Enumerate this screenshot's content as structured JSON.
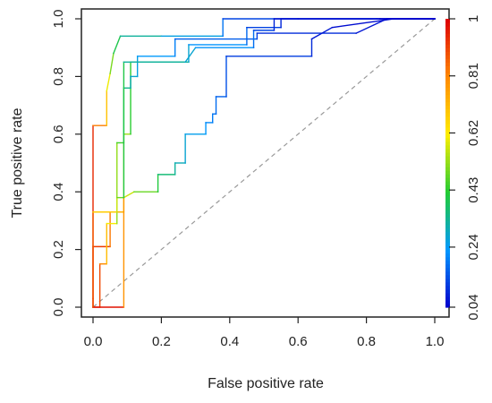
{
  "chart_data": {
    "type": "line",
    "title": "",
    "xlabel": "False positive rate",
    "ylabel": "True positive rate",
    "xlim": [
      0,
      1
    ],
    "ylim": [
      0,
      1
    ],
    "x_ticks": [
      0.0,
      0.2,
      0.4,
      0.6,
      0.8,
      1.0
    ],
    "y_ticks": [
      0.0,
      0.2,
      0.4,
      0.6,
      0.8,
      1.0
    ],
    "x_tick_labels": [
      "0.0",
      "0.2",
      "0.4",
      "0.6",
      "0.8",
      "1.0"
    ],
    "y_tick_labels": [
      "0.0",
      "0.2",
      "0.4",
      "0.6",
      "0.8",
      "1.0"
    ],
    "grid": false,
    "reference_line": {
      "style": "dashed",
      "color": "#999999",
      "points": [
        [
          0,
          0
        ],
        [
          1,
          1
        ]
      ]
    },
    "colorbar": {
      "position": "right",
      "tick_values": [
        0.04,
        0.24,
        0.43,
        0.62,
        0.81,
        1
      ],
      "tick_labels": [
        "0.04",
        "0.24",
        "0.43",
        "0.62",
        "0.81",
        "1"
      ],
      "colors": [
        "#0000cc",
        "#0099ff",
        "#22cc33",
        "#ffee00",
        "#ff8800",
        "#dd0000"
      ]
    },
    "series": [
      {
        "color_scale": "threshold",
        "points": [
          [
            0.0,
            0.0,
            1.0
          ],
          [
            0.0,
            0.03,
            0.99
          ],
          [
            0.0,
            0.63,
            0.9
          ],
          [
            0.04,
            0.63,
            0.75
          ],
          [
            0.04,
            0.75,
            0.65
          ],
          [
            0.05,
            0.81,
            0.55
          ],
          [
            0.06,
            0.88,
            0.45
          ],
          [
            0.08,
            0.94,
            0.35
          ],
          [
            0.2,
            0.94,
            0.3
          ],
          [
            0.38,
            0.94,
            0.22
          ],
          [
            0.38,
            1.0,
            0.15
          ],
          [
            0.6,
            1.0,
            0.1
          ],
          [
            0.83,
            1.0,
            0.06
          ],
          [
            1.0,
            1.0,
            0.04
          ]
        ]
      },
      {
        "color_scale": "threshold",
        "points": [
          [
            0.0,
            0.0,
            1.0
          ],
          [
            0.0,
            0.21,
            0.95
          ],
          [
            0.05,
            0.21,
            0.88
          ],
          [
            0.05,
            0.33,
            0.78
          ],
          [
            0.09,
            0.33,
            0.68
          ],
          [
            0.09,
            0.6,
            0.58
          ],
          [
            0.11,
            0.6,
            0.48
          ],
          [
            0.11,
            0.85,
            0.38
          ],
          [
            0.28,
            0.85,
            0.3
          ],
          [
            0.28,
            0.91,
            0.25
          ],
          [
            0.45,
            0.91,
            0.2
          ],
          [
            0.45,
            0.97,
            0.14
          ],
          [
            0.55,
            0.97,
            0.1
          ],
          [
            0.55,
            1.0,
            0.07
          ],
          [
            0.94,
            1.0,
            0.05
          ],
          [
            1.0,
            1.0,
            0.04
          ]
        ]
      },
      {
        "color_scale": "threshold",
        "points": [
          [
            0.0,
            0.0,
            1.0
          ],
          [
            0.02,
            0.0,
            0.95
          ],
          [
            0.02,
            0.15,
            0.85
          ],
          [
            0.04,
            0.15,
            0.76
          ],
          [
            0.04,
            0.29,
            0.66
          ],
          [
            0.07,
            0.29,
            0.56
          ],
          [
            0.07,
            0.57,
            0.48
          ],
          [
            0.09,
            0.57,
            0.42
          ],
          [
            0.09,
            0.76,
            0.36
          ],
          [
            0.11,
            0.76,
            0.32
          ],
          [
            0.11,
            0.8,
            0.29
          ],
          [
            0.13,
            0.8,
            0.27
          ],
          [
            0.13,
            0.87,
            0.25
          ],
          [
            0.24,
            0.87,
            0.22
          ],
          [
            0.24,
            0.93,
            0.18
          ],
          [
            0.48,
            0.93,
            0.13
          ],
          [
            0.48,
            0.95,
            0.11
          ],
          [
            0.77,
            0.95,
            0.08
          ],
          [
            0.86,
            1.0,
            0.05
          ],
          [
            1.0,
            1.0,
            0.04
          ]
        ]
      },
      {
        "color_scale": "threshold",
        "points": [
          [
            0.0,
            0.0,
            1.0
          ],
          [
            0.09,
            0.0,
            0.95
          ],
          [
            0.09,
            0.38,
            0.62
          ],
          [
            0.12,
            0.4,
            0.52
          ],
          [
            0.19,
            0.4,
            0.45
          ],
          [
            0.19,
            0.46,
            0.38
          ],
          [
            0.24,
            0.46,
            0.34
          ],
          [
            0.24,
            0.5,
            0.31
          ],
          [
            0.27,
            0.5,
            0.29
          ],
          [
            0.27,
            0.6,
            0.26
          ],
          [
            0.33,
            0.6,
            0.24
          ],
          [
            0.33,
            0.64,
            0.22
          ],
          [
            0.35,
            0.64,
            0.2
          ],
          [
            0.35,
            0.67,
            0.19
          ],
          [
            0.36,
            0.67,
            0.18
          ],
          [
            0.36,
            0.73,
            0.17
          ],
          [
            0.39,
            0.73,
            0.15
          ],
          [
            0.39,
            0.87,
            0.13
          ],
          [
            0.64,
            0.87,
            0.1
          ],
          [
            0.64,
            0.93,
            0.08
          ],
          [
            0.7,
            0.97,
            0.06
          ],
          [
            0.88,
            1.0,
            0.05
          ],
          [
            1.0,
            1.0,
            0.04
          ]
        ]
      },
      {
        "color_scale": "threshold",
        "points": [
          [
            0.0,
            0.0,
            1.0
          ],
          [
            0.0,
            0.33,
            0.74
          ],
          [
            0.07,
            0.33,
            0.62
          ],
          [
            0.07,
            0.38,
            0.52
          ],
          [
            0.09,
            0.38,
            0.46
          ],
          [
            0.09,
            0.85,
            0.35
          ],
          [
            0.27,
            0.85,
            0.3
          ],
          [
            0.3,
            0.9,
            0.25
          ],
          [
            0.47,
            0.9,
            0.2
          ],
          [
            0.47,
            0.96,
            0.15
          ],
          [
            0.53,
            0.96,
            0.1
          ],
          [
            0.53,
            1.0,
            0.07
          ],
          [
            0.84,
            1.0,
            0.05
          ],
          [
            1.0,
            1.0,
            0.04
          ]
        ]
      }
    ]
  }
}
